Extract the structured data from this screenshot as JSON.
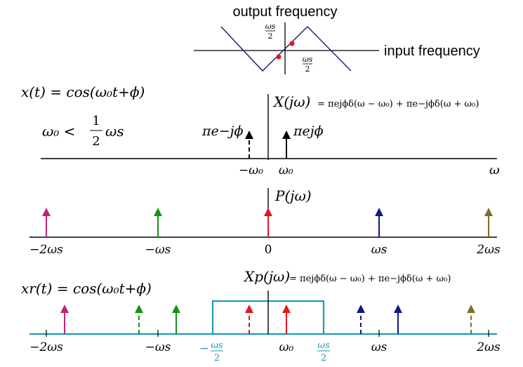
{
  "colors": {
    "axis": "#000000",
    "alias_curve": "#1a237e",
    "alias_dot": "#e01b1b",
    "red": "#e8141e",
    "green": "#149414",
    "navy": "#0d1a80",
    "olive": "#7d7026",
    "magenta": "#c2237a",
    "cyan": "#1b9ab8"
  },
  "alias_plot": {
    "title": "output frequency",
    "input_label": "input frequency",
    "y_tick_num": "ωs",
    "y_tick_den": "2",
    "x_tick_num": "ωs",
    "x_tick_den": "2"
  },
  "panel1": {
    "signal": "x(t) = cos(ω₀t+ϕ)",
    "condition_lhs": "ω₀ <",
    "condition_num": "1",
    "condition_den": "2",
    "condition_rhs": "ωs",
    "spectrum_label": "X(jω)",
    "spectrum_formula": "= πejϕδ(ω − ω₀) + πe−jϕδ(ω + ω₀)",
    "neg_impulse_label": "πe−jϕ",
    "pos_impulse_label": "πejϕ",
    "tick_neg": "−ω₀",
    "tick_pos": "ω₀",
    "axis_var": "ω"
  },
  "panel2": {
    "label": "P(jω)",
    "ticks": [
      "−2ωs",
      "−ωs",
      "0",
      "ωs",
      "2ωs"
    ]
  },
  "panel3": {
    "signal": "xr(t) = cos(ω₀t+ϕ)",
    "spectrum_label": "Xp(jω)",
    "spectrum_formula": "= πejϕδ(ω − ω₀) + πe−jϕδ(ω + ω₀)",
    "ticks": [
      "−2ωs",
      "−ωs",
      "ω₀",
      "ωs",
      "2ωs"
    ],
    "filter_neg_num": "ωs",
    "filter_neg_den": "2",
    "filter_pos_num": "ωs",
    "filter_pos_den": "2"
  }
}
